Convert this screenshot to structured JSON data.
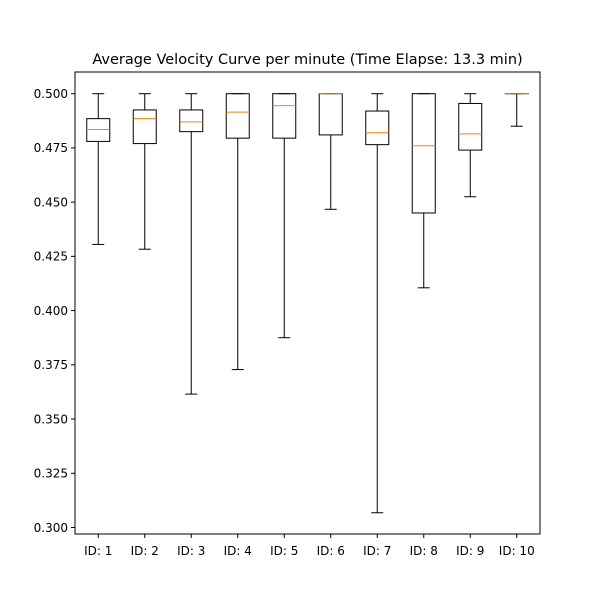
{
  "chart_data": {
    "type": "box",
    "title": "Average Velocity Curve per minute (Time Elapse: 13.3 min)",
    "xlabel": "",
    "ylabel": "",
    "ylim": [
      0.297,
      0.51
    ],
    "yticks": [
      0.3,
      0.325,
      0.35,
      0.375,
      0.4,
      0.425,
      0.45,
      0.475,
      0.5
    ],
    "ytick_labels": [
      "0.300",
      "0.325",
      "0.350",
      "0.375",
      "0.400",
      "0.425",
      "0.450",
      "0.475",
      "0.500"
    ],
    "grid": false,
    "categories": [
      "ID: 1",
      "ID: 2",
      "ID: 3",
      "ID: 4",
      "ID: 5",
      "ID: 6",
      "ID: 7",
      "ID: 8",
      "ID: 9",
      "ID: 10"
    ],
    "boxes": [
      {
        "whisker_low": 0.4305,
        "q1": 0.478,
        "median": 0.4835,
        "q3": 0.4885,
        "whisker_high": 0.5
      },
      {
        "whisker_low": 0.4283,
        "q1": 0.477,
        "median": 0.4885,
        "q3": 0.4925,
        "whisker_high": 0.5
      },
      {
        "whisker_low": 0.3615,
        "q1": 0.4825,
        "median": 0.487,
        "q3": 0.4925,
        "whisker_high": 0.5
      },
      {
        "whisker_low": 0.3728,
        "q1": 0.4795,
        "median": 0.4915,
        "q3": 0.5,
        "whisker_high": 0.5
      },
      {
        "whisker_low": 0.3875,
        "q1": 0.4795,
        "median": 0.4945,
        "q3": 0.5,
        "whisker_high": 0.5
      },
      {
        "whisker_low": 0.4467,
        "q1": 0.481,
        "median": 0.5,
        "q3": 0.5,
        "whisker_high": 0.5
      },
      {
        "whisker_low": 0.3068,
        "q1": 0.4765,
        "median": 0.482,
        "q3": 0.492,
        "whisker_high": 0.5
      },
      {
        "whisker_low": 0.4105,
        "q1": 0.445,
        "median": 0.476,
        "q3": 0.5,
        "whisker_high": 0.5
      },
      {
        "whisker_low": 0.4525,
        "q1": 0.474,
        "median": 0.4815,
        "q3": 0.4955,
        "whisker_high": 0.5
      },
      {
        "whisker_low": 0.485,
        "q1": 0.5,
        "median": 0.5,
        "q3": 0.5,
        "whisker_high": 0.5
      }
    ],
    "colors": {
      "box": "#000000",
      "median": "#ff7f0e",
      "axes": "#000000",
      "background": "#ffffff"
    }
  }
}
